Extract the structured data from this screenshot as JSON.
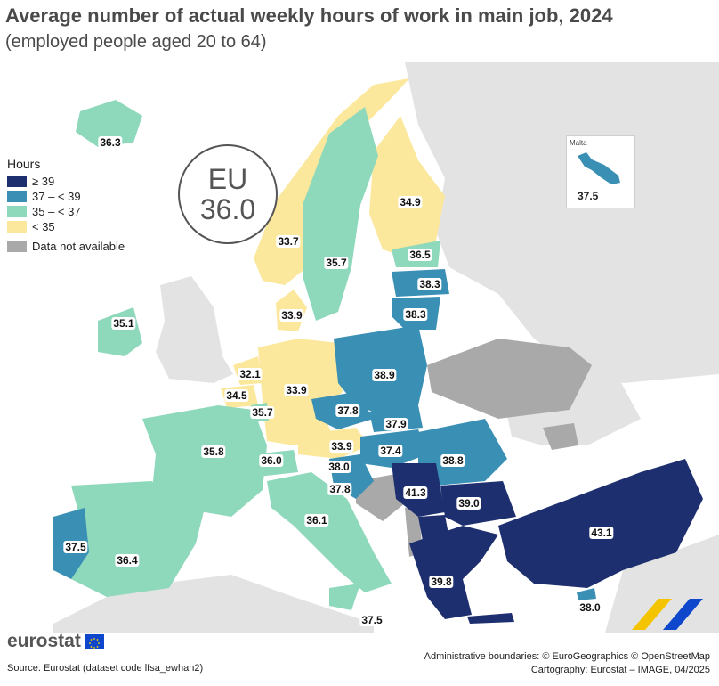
{
  "title": "Average number of actual weekly hours of work in main job, 2024",
  "subtitle": "(employed people aged 20 to 64)",
  "eu_badge": {
    "line1": "EU",
    "line2": "36.0"
  },
  "legend": {
    "title": "Hours",
    "items": [
      {
        "label": "≥ 39",
        "color": "#1d2f6e"
      },
      {
        "label": "37 – < 39",
        "color": "#3a8fb5"
      },
      {
        "label": "35 – < 37",
        "color": "#8ed8bc"
      },
      {
        "label": "< 35",
        "color": "#fbe89c"
      },
      {
        "label": "Data not available",
        "color": "#a9a9a9"
      }
    ]
  },
  "colors": {
    "ge39": "#1d2f6e",
    "c37_39": "#3a8fb5",
    "c35_37": "#8ed8bc",
    "lt35": "#fbe89c",
    "na": "#a9a9a9",
    "non_eu": "#e3e3e3",
    "sea": "#ffffff"
  },
  "countries": {
    "iceland": "36.3",
    "norway": "33.7",
    "sweden": "35.7",
    "finland": "34.9",
    "estonia": "36.5",
    "latvia": "38.3",
    "lithuania": "38.3",
    "denmark": "33.9",
    "ireland": "35.1",
    "netherlands": "32.1",
    "belgium": "34.5",
    "luxembourg": "35.7",
    "germany": "33.9",
    "poland": "38.9",
    "czechia": "37.8",
    "slovakia": "37.9",
    "austria": "33.9",
    "hungary": "37.4",
    "romania": "38.8",
    "france": "35.8",
    "switzerland": "36.0",
    "slovenia": "38.0",
    "croatia": "37.8",
    "serbia": "41.3",
    "bulgaria": "39.0",
    "portugal": "37.5",
    "spain": "36.4",
    "italy": "36.1",
    "greece": "39.8",
    "turkey": "43.1",
    "cyprus": "38.0",
    "malta_map": "37.5"
  },
  "malta_inset": {
    "name": "Malta",
    "value": "37.5"
  },
  "logo": "eurostat",
  "source": "Source: Eurostat (dataset code lfsa_ewhan2)",
  "credits": {
    "line1": "Administrative boundaries: © EuroGeographics © OpenStreetMap",
    "line2": "Cartography: Eurostat – IMAGE, 04/2025"
  }
}
